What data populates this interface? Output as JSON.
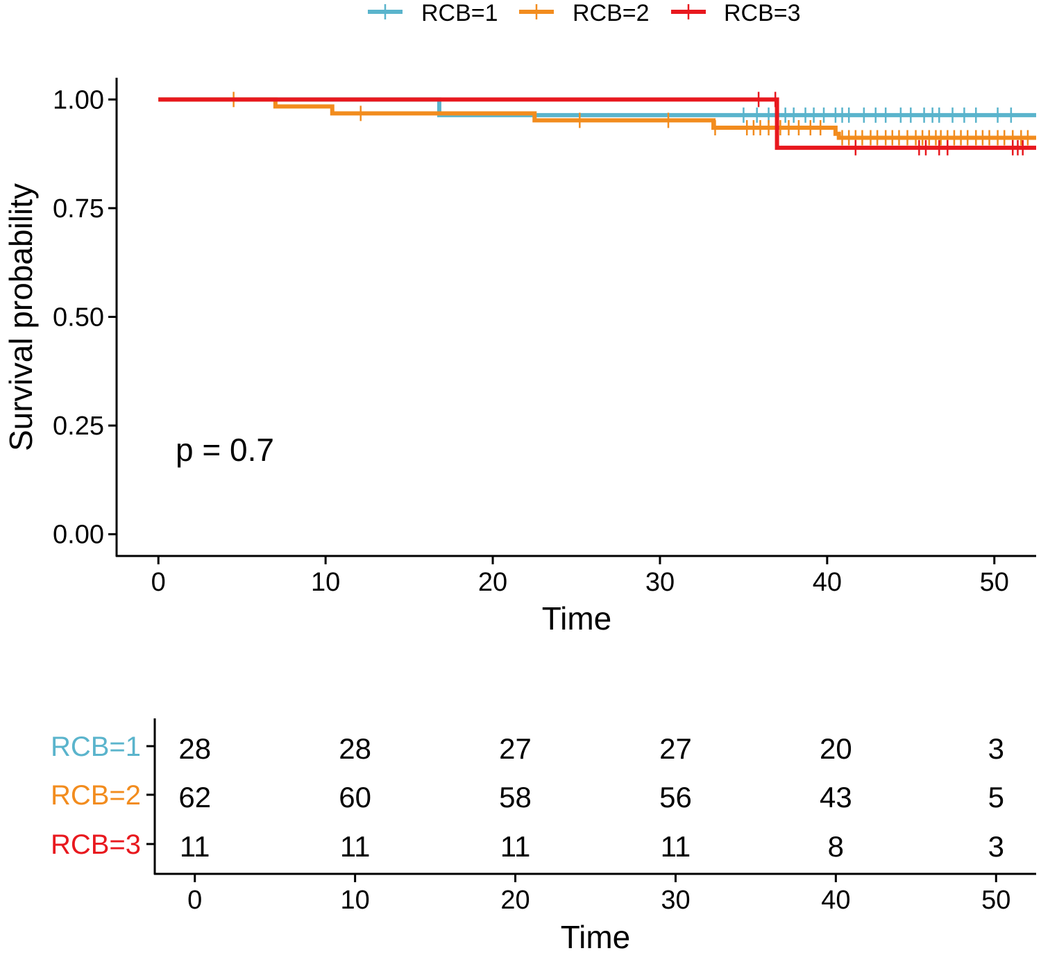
{
  "chart_data": {
    "type": "line",
    "subtype": "kaplan-meier",
    "title": "",
    "xlabel": "Time",
    "ylabel": "Survival probability",
    "xlim": [
      -2.5,
      52.5
    ],
    "ylim": [
      -0.05,
      1.05
    ],
    "x_ticks": [
      0,
      10,
      20,
      30,
      40,
      50
    ],
    "y_ticks": [
      "0.00",
      "0.25",
      "0.50",
      "0.75",
      "1.00"
    ],
    "annotation": "p = 0.7",
    "legend": {
      "position": "top",
      "entries": [
        "RCB=1",
        "RCB=2",
        "RCB=3"
      ]
    },
    "series": [
      {
        "name": "RCB=1",
        "color": "#5ab4cc",
        "steps": [
          [
            0,
            1.0
          ],
          [
            16.8,
            0.964
          ],
          [
            52.5,
            0.964
          ]
        ],
        "censor_times": [
          35.0,
          35.8,
          36.5,
          37.5,
          38.0,
          38.7,
          39.2,
          39.8,
          40.5,
          40.9,
          41.3,
          42.2,
          42.9,
          43.5,
          44.4,
          45.0,
          45.8,
          46.3,
          46.7,
          47.5,
          48.2,
          48.9,
          50.2,
          51.0
        ]
      },
      {
        "name": "RCB=2",
        "color": "#f28c1e",
        "steps": [
          [
            0,
            1.0
          ],
          [
            7.0,
            0.984
          ],
          [
            10.4,
            0.968
          ],
          [
            22.5,
            0.952
          ],
          [
            33.2,
            0.935
          ],
          [
            40.5,
            0.921
          ],
          [
            40.7,
            0.912
          ],
          [
            52.5,
            0.912
          ]
        ],
        "censor_times": [
          4.5,
          12.1,
          25.2,
          30.5,
          33.3,
          35.2,
          35.6,
          36.0,
          36.5,
          37.2,
          37.7,
          38.3,
          39.0,
          39.6,
          40.9,
          41.3,
          41.7,
          42.1,
          42.6,
          43.0,
          43.5,
          43.9,
          44.3,
          44.8,
          45.3,
          45.7,
          46.1,
          46.5,
          46.8,
          47.2,
          47.6,
          48.0,
          48.4,
          48.9,
          49.3,
          49.7,
          50.2,
          50.6,
          51.1,
          51.6,
          52.0
        ]
      },
      {
        "name": "RCB=3",
        "color": "#e8181e",
        "steps": [
          [
            0,
            1.0
          ],
          [
            37.0,
            0.889
          ],
          [
            52.5,
            0.889
          ]
        ],
        "censor_times": [
          35.9,
          36.9,
          41.7,
          45.5,
          45.9,
          46.7,
          47.2,
          51.1,
          51.4,
          51.7
        ]
      }
    ],
    "risk_table": {
      "xlabel": "Time",
      "x_ticks": [
        0,
        10,
        20,
        30,
        40,
        50
      ],
      "rows": [
        {
          "label": "RCB=1",
          "color": "#5ab4cc",
          "counts": [
            28,
            28,
            27,
            27,
            20,
            3
          ]
        },
        {
          "label": "RCB=2",
          "color": "#f28c1e",
          "counts": [
            62,
            60,
            58,
            56,
            43,
            5
          ]
        },
        {
          "label": "RCB=3",
          "color": "#e8181e",
          "counts": [
            11,
            11,
            11,
            11,
            8,
            3
          ]
        }
      ]
    }
  }
}
